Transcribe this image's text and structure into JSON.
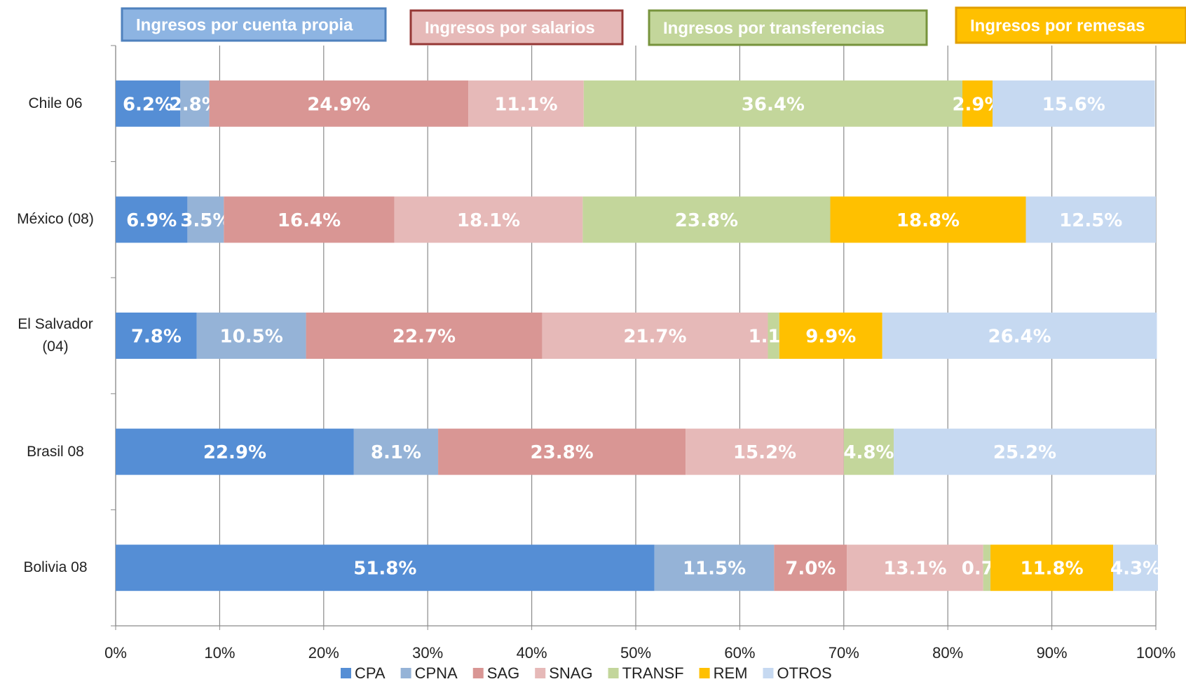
{
  "chart_data": {
    "type": "stacked_barh",
    "annotations": [
      {
        "text": "Ingresos por cuenta  propia",
        "color": "#8db4e2",
        "border": "#4f81bd"
      },
      {
        "text": "Ingresos por salarios",
        "color": "#e6b9b8",
        "border": "#953735"
      },
      {
        "text": "Ingresos por transferencias",
        "color": "#c3d69b",
        "border": "#77933c"
      },
      {
        "text": "Ingresos por  remesas",
        "color": "#ffc000",
        "border": "#e29f00"
      }
    ],
    "categories": [
      "Chile 06",
      "México (08)",
      "El Salvador (04)",
      "Brasil 08",
      "Bolivia 08"
    ],
    "series": [
      {
        "name": "CPA",
        "color": "#558ed5",
        "values": [
          6.2,
          6.9,
          7.8,
          22.9,
          51.8
        ],
        "value_labels": [
          "6.2%",
          "6.9%",
          "7.8%",
          "22.9%",
          "51.8%"
        ]
      },
      {
        "name": "CPNA",
        "color": "#95b3d7",
        "values": [
          2.8,
          3.5,
          10.5,
          8.1,
          11.5
        ],
        "value_labels": [
          "2.8%",
          "3.5%",
          "10.5%",
          "8.1%",
          "11.5%"
        ]
      },
      {
        "name": "SAG",
        "color": "#d99694",
        "values": [
          24.9,
          16.4,
          22.7,
          23.8,
          7.0
        ],
        "value_labels": [
          "24.9%",
          "16.4%",
          "22.7%",
          "23.8%",
          "7.0%"
        ]
      },
      {
        "name": "SNAG",
        "color": "#e6b9b8",
        "values": [
          11.1,
          18.1,
          21.7,
          15.2,
          13.1
        ],
        "value_labels": [
          "11.1%",
          "18.1%",
          "21.7%",
          "15.2%",
          "13.1%"
        ]
      },
      {
        "name": "TRANSF",
        "color": "#c3d69b",
        "values": [
          36.4,
          23.8,
          1.1,
          4.8,
          0.7
        ],
        "value_labels": [
          "36.4%",
          "23.8%",
          "1.1%",
          "4.8%",
          "0.7%"
        ]
      },
      {
        "name": "REM",
        "color": "#ffc000",
        "values": [
          2.9,
          18.8,
          9.9,
          null,
          11.8
        ],
        "value_labels": [
          "2.9%",
          "18.8%",
          "9.9%",
          null,
          "11.8%"
        ]
      },
      {
        "name": "OTROS",
        "color": "#c6d9f1",
        "values": [
          15.6,
          12.5,
          26.4,
          25.2,
          4.3
        ],
        "value_labels": [
          "15.6%",
          "12.5%",
          "26.4%",
          "25.2%",
          "4.3%"
        ]
      }
    ],
    "xlim": [
      0,
      100
    ],
    "xticks": [
      {
        "value": 0,
        "label": "0%"
      },
      {
        "value": 10,
        "label": "10%"
      },
      {
        "value": 20,
        "label": "20%"
      },
      {
        "value": 30,
        "label": "30%"
      },
      {
        "value": 40,
        "label": "40%"
      },
      {
        "value": 50,
        "label": "50%"
      },
      {
        "value": 60,
        "label": "60%"
      },
      {
        "value": 70,
        "label": "70%"
      },
      {
        "value": 80,
        "label": "80%"
      },
      {
        "value": 90,
        "label": "90%"
      },
      {
        "value": 100,
        "label": "100%"
      }
    ],
    "grid": true
  }
}
